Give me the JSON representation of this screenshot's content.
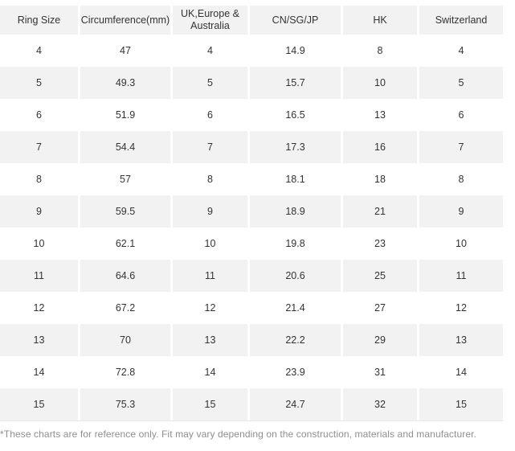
{
  "chart_data": {
    "type": "table",
    "columns": [
      "Ring Size",
      "Circumference(mm)",
      "UK,Europe & Australia",
      "CN/SG/JP",
      "HK",
      "Switzerland"
    ],
    "rows": [
      [
        "4",
        "47",
        "4",
        "14.9",
        "8",
        "4"
      ],
      [
        "5",
        "49.3",
        "5",
        "15.7",
        "10",
        "5"
      ],
      [
        "6",
        "51.9",
        "6",
        "16.5",
        "13",
        "6"
      ],
      [
        "7",
        "54.4",
        "7",
        "17.3",
        "16",
        "7"
      ],
      [
        "8",
        "57",
        "8",
        "18.1",
        "18",
        "8"
      ],
      [
        "9",
        "59.5",
        "9",
        "18.9",
        "21",
        "9"
      ],
      [
        "10",
        "62.1",
        "10",
        "19.8",
        "23",
        "10"
      ],
      [
        "11",
        "64.6",
        "11",
        "20.6",
        "25",
        "11"
      ],
      [
        "12",
        "67.2",
        "12",
        "21.4",
        "27",
        "12"
      ],
      [
        "13",
        "70",
        "13",
        "22.2",
        "29",
        "13"
      ],
      [
        "14",
        "72.8",
        "14",
        "23.9",
        "31",
        "14"
      ],
      [
        "15",
        "75.3",
        "15",
        "24.7",
        "32",
        "15"
      ]
    ],
    "title": "",
    "layout_hints": {
      "striping": "rows alternate white and light gray starting with white",
      "column_gap_color": "#ffffff"
    }
  },
  "footnote": "*These charts are for reference only. Fit may vary depending on the construction, materials and manufacturer.",
  "colors": {
    "header_bg": "#f2f2f2",
    "row_bg": "#ffffff",
    "row_alt_bg": "#f2f2f2",
    "text": "#333333",
    "footnote_text": "#8f8f8f",
    "table_border": "#e7e7e7"
  }
}
